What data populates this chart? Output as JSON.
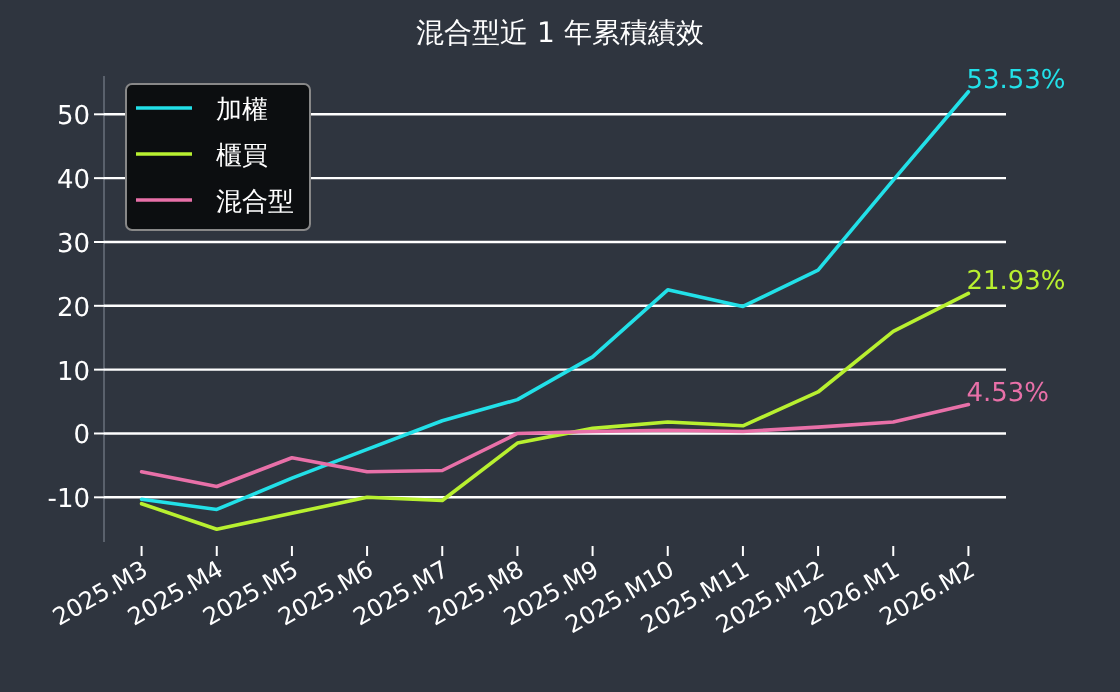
{
  "chart_data": {
    "type": "line",
    "title": "混合型近 1 年累積績效",
    "categories": [
      "2025.M3",
      "2025.M4",
      "2025.M5",
      "2025.M6",
      "2025.M7",
      "2025.M8",
      "2025.M9",
      "2025.M10",
      "2025.M11",
      "2025.M12",
      "2026.M1",
      "2026.M2"
    ],
    "series": [
      {
        "name": "加權",
        "color": "#22e0e8",
        "values": [
          -10.3,
          -11.9,
          -7,
          -2.5,
          2,
          5.3,
          12,
          22.5,
          19.9,
          25.6,
          39.7,
          53.53
        ],
        "value_labels": [
          null,
          null,
          null,
          null,
          null,
          null,
          null,
          null,
          null,
          null,
          null,
          "53.53%"
        ]
      },
      {
        "name": "櫃買",
        "color": "#b8f030",
        "values": [
          -11,
          -15,
          -12.5,
          -10,
          -10.5,
          -1.5,
          0.8,
          1.8,
          1.2,
          6.5,
          16,
          21.93
        ],
        "value_labels": [
          null,
          null,
          null,
          null,
          null,
          null,
          null,
          null,
          null,
          null,
          null,
          "21.93%"
        ]
      },
      {
        "name": "混合型",
        "color": "#e870a8",
        "values": [
          -6,
          -8.3,
          -3.8,
          -6,
          -5.8,
          0,
          0.3,
          0.5,
          0.3,
          1,
          1.8,
          4.53
        ],
        "value_labels": [
          null,
          null,
          null,
          null,
          null,
          null,
          null,
          null,
          null,
          null,
          null,
          "4.53%"
        ]
      }
    ],
    "ylim": [
      -17,
      56
    ],
    "yticks": [
      -10,
      0,
      10,
      20,
      30,
      40,
      50
    ],
    "grid": "y",
    "legend": "top left",
    "marker": "none",
    "line_style": "solid"
  }
}
